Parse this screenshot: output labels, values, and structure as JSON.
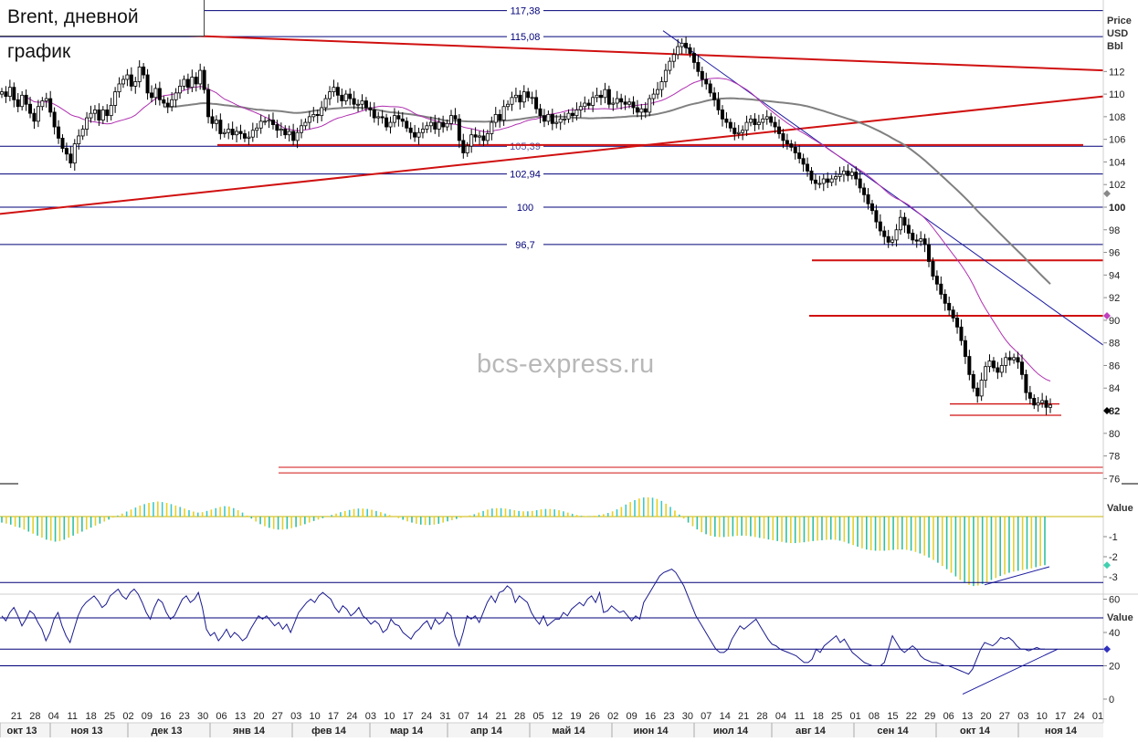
{
  "title": "Brent, дневной график",
  "watermark": "bcs-express.ru",
  "price_axis_header": [
    "Price",
    "USD",
    "Bbl"
  ],
  "osc_axis_header": "Value",
  "rsi_axis_header": "Value",
  "colors": {
    "candle": "#000000",
    "resistance": "#d01010",
    "fib": "#00007a",
    "ma_short": "#b030b0",
    "ma_long": "#808080",
    "trend_blue": "#1a1aa0",
    "hist_pos_a": "#e8d020",
    "hist_pos_b": "#40c8c8",
    "hist_neg_a": "#e0d030",
    "hist_neg_b": "#30c0a0",
    "rsi_line": "#1a1a90"
  },
  "chart_data": [
    {
      "type": "candlestick",
      "title": "Brent, дневной график",
      "ylabel": "Price USD Bbl",
      "ylim": [
        75,
        119
      ],
      "y_ticks": [
        76,
        78,
        80,
        82,
        84,
        86,
        88,
        90,
        92,
        94,
        96,
        98,
        100,
        102,
        104,
        106,
        108,
        110,
        112
      ],
      "y_tick_bold": [
        100,
        82
      ],
      "day_ticks": [
        "21",
        "28",
        "04",
        "11",
        "18",
        "25",
        "02",
        "09",
        "16",
        "23",
        "30",
        "06",
        "13",
        "20",
        "27",
        "03",
        "10",
        "17",
        "24",
        "03",
        "10",
        "17",
        "24",
        "31",
        "07",
        "14",
        "21",
        "28",
        "05",
        "12",
        "19",
        "26",
        "02",
        "09",
        "16",
        "23",
        "30",
        "07",
        "14",
        "21",
        "28",
        "04",
        "11",
        "18",
        "25",
        "01",
        "08",
        "15",
        "22",
        "29",
        "06",
        "13",
        "20",
        "27",
        "03",
        "10",
        "17",
        "24",
        "01"
      ],
      "month_ticks": [
        "окт 13",
        "ноя 13",
        "дек 13",
        "янв 14",
        "фев 14",
        "мар 14",
        "апр 14",
        "май 14",
        "июн 14",
        "июл 14",
        "авг 14",
        "сен 14",
        "окт 14",
        "ноя 14"
      ],
      "fib_levels": [
        {
          "label": "117,38",
          "value": 117.38
        },
        {
          "label": "115,08",
          "value": 115.08
        },
        {
          "label": "105,39",
          "value": 105.39
        },
        {
          "label": "102,94",
          "value": 102.94
        },
        {
          "label": "100",
          "value": 100
        },
        {
          "label": "96,7",
          "value": 96.7
        }
      ],
      "horizontal_levels": [
        95.3,
        90.4,
        82.6,
        81.6,
        77.0,
        76.5,
        105.5
      ],
      "closes": [
        110.2,
        109.8,
        110.6,
        109.5,
        108.9,
        109.9,
        109.1,
        108.3,
        107.6,
        108.9,
        109.4,
        109.6,
        108.4,
        107.1,
        106.1,
        105.2,
        104.7,
        103.9,
        105.6,
        106.3,
        106.9,
        107.9,
        108.3,
        108.6,
        107.7,
        108.6,
        108.1,
        109.0,
        110.2,
        110.9,
        111.3,
        111.7,
        110.7,
        111.1,
        112.4,
        111.7,
        110.1,
        109.7,
        110.5,
        109.5,
        109.2,
        108.9,
        109.5,
        110.1,
        110.7,
        111.3,
        110.6,
        111.5,
        110.9,
        112.1,
        110.4,
        108.0,
        107.4,
        107.7,
        106.5,
        106.6,
        106.9,
        106.4,
        106.7,
        106.5,
        106.1,
        106.2,
        106.8,
        107.0,
        107.6,
        107.6,
        107.7,
        107.3,
        106.8,
        106.9,
        106.4,
        106.7,
        105.9,
        106.6,
        107.2,
        107.5,
        108.0,
        108.2,
        108.1,
        108.8,
        109.6,
        110.2,
        110.6,
        109.9,
        109.4,
        110.0,
        109.6,
        109.1,
        109.1,
        109.4,
        108.8,
        108.6,
        107.9,
        108.0,
        107.9,
        107.1,
        107.5,
        108.1,
        107.8,
        107.6,
        107.0,
        106.6,
        106.2,
        106.6,
        106.9,
        107.2,
        107.5,
        106.9,
        107.5,
        107.1,
        107.4,
        108.1,
        107.8,
        105.9,
        104.8,
        105.4,
        106.4,
        106.2,
        106.3,
        105.9,
        106.5,
        107.5,
        108.2,
        107.7,
        108.9,
        109.1,
        109.7,
        109.9,
        109.3,
        110.2,
        109.7,
        109.7,
        108.7,
        108.1,
        107.6,
        108.2,
        107.4,
        107.5,
        107.8,
        107.8,
        108.3,
        108.1,
        108.6,
        108.9,
        109.2,
        109.0,
        109.7,
        109.9,
        109.7,
        110.4,
        109.1,
        109.2,
        109.6,
        109.3,
        109.1,
        109.3,
        108.8,
        108.4,
        108.7,
        108.4,
        109.6,
        110.0,
        110.4,
        111.1,
        112.1,
        112.9,
        113.5,
        114.2,
        114.5,
        114.1,
        113.6,
        112.8,
        112.0,
        111.3,
        110.9,
        110.1,
        109.5,
        108.6,
        107.8,
        107.5,
        107.0,
        106.5,
        106.6,
        106.8,
        107.5,
        107.8,
        107.3,
        107.5,
        107.8,
        108.0,
        107.5,
        107.1,
        106.5,
        105.9,
        105.6,
        105.3,
        104.8,
        104.3,
        103.8,
        103.2,
        102.4,
        102.1,
        102.1,
        102.5,
        102.2,
        102.5,
        102.7,
        102.9,
        103.2,
        102.8,
        103.1,
        102.5,
        101.7,
        101.1,
        100.3,
        99.7,
        98.7,
        97.9,
        97.4,
        96.9,
        97.1,
        98.0,
        99.1,
        98.4,
        97.7,
        97.1,
        97.0,
        97.2,
        96.7,
        95.2,
        93.9,
        93.2,
        92.3,
        91.5,
        90.9,
        90.2,
        89.4,
        88.2,
        86.8,
        85.2,
        84.0,
        83.3,
        84.7,
        85.9,
        86.4,
        85.8,
        85.4,
        86.0,
        86.7,
        86.5,
        86.7,
        86.3,
        85.2,
        83.6,
        83.1,
        82.5,
        82.7,
        82.9,
        82.3,
        82.5
      ]
    },
    {
      "type": "histogram",
      "name": "MACD",
      "ylim": [
        -3.7,
        1.0
      ],
      "y_ticks": [
        -1,
        -2,
        -3
      ],
      "values": [
        -0.3,
        -0.35,
        -0.4,
        -0.5,
        -0.55,
        -0.65,
        -0.75,
        -0.85,
        -0.95,
        -1.05,
        -1.15,
        -1.2,
        -1.25,
        -1.22,
        -1.15,
        -1.05,
        -0.95,
        -0.85,
        -0.75,
        -0.65,
        -0.55,
        -0.45,
        -0.35,
        -0.25,
        -0.15,
        -0.05,
        0.05,
        0.15,
        0.25,
        0.35,
        0.45,
        0.55,
        0.62,
        0.68,
        0.72,
        0.75,
        0.72,
        0.68,
        0.62,
        0.55,
        0.48,
        0.4,
        0.32,
        0.25,
        0.2,
        0.22,
        0.28,
        0.35,
        0.42,
        0.48,
        0.52,
        0.5,
        0.42,
        0.32,
        0.2,
        0.05,
        -0.1,
        -0.25,
        -0.38,
        -0.48,
        -0.56,
        -0.62,
        -0.65,
        -0.65,
        -0.62,
        -0.58,
        -0.52,
        -0.45,
        -0.38,
        -0.3,
        -0.22,
        -0.15,
        -0.08,
        0.0,
        0.08,
        0.15,
        0.22,
        0.28,
        0.33,
        0.38,
        0.4,
        0.4,
        0.38,
        0.34,
        0.28,
        0.22,
        0.15,
        0.08,
        0.0,
        -0.08,
        -0.16,
        -0.24,
        -0.3,
        -0.36,
        -0.4,
        -0.42,
        -0.42,
        -0.4,
        -0.36,
        -0.3,
        -0.24,
        -0.18,
        -0.12,
        -0.06,
        0.0,
        0.06,
        0.12,
        0.2,
        0.28,
        0.35,
        0.4,
        0.42,
        0.42,
        0.4,
        0.36,
        0.32,
        0.28,
        0.26,
        0.26,
        0.28,
        0.32,
        0.36,
        0.38,
        0.38,
        0.36,
        0.32,
        0.26,
        0.2,
        0.14,
        0.08,
        0.04,
        0.02,
        0.02,
        0.04,
        0.08,
        0.12,
        0.18,
        0.26,
        0.36,
        0.48,
        0.6,
        0.72,
        0.82,
        0.9,
        0.95,
        0.96,
        0.94,
        0.88,
        0.78,
        0.64,
        0.48,
        0.3,
        0.1,
        -0.1,
        -0.3,
        -0.48,
        -0.64,
        -0.78,
        -0.88,
        -0.96,
        -1.0,
        -1.02,
        -1.02,
        -1.0,
        -0.98,
        -0.96,
        -0.95,
        -0.96,
        -0.98,
        -1.02,
        -1.06,
        -1.1,
        -1.14,
        -1.18,
        -1.22,
        -1.26,
        -1.3,
        -1.32,
        -1.32,
        -1.3,
        -1.28,
        -1.25,
        -1.22,
        -1.2,
        -1.18,
        -1.16,
        -1.15,
        -1.16,
        -1.2,
        -1.26,
        -1.34,
        -1.42,
        -1.5,
        -1.58,
        -1.64,
        -1.68,
        -1.7,
        -1.7,
        -1.7,
        -1.68,
        -1.66,
        -1.64,
        -1.64,
        -1.66,
        -1.7,
        -1.76,
        -1.84,
        -1.94,
        -2.04,
        -2.16,
        -2.3,
        -2.46,
        -2.62,
        -2.8,
        -2.98,
        -3.16,
        -3.3,
        -3.4,
        -3.46,
        -3.44,
        -3.36,
        -3.26,
        -3.16,
        -3.06,
        -2.96,
        -2.88,
        -2.8,
        -2.74,
        -2.7,
        -2.66,
        -2.62,
        -2.58,
        -2.52,
        -2.46,
        -2.42
      ]
    },
    {
      "type": "line",
      "name": "RSI",
      "ylim": [
        -3,
        80
      ],
      "y_ticks": [
        60,
        40,
        20,
        0
      ],
      "levels": [
        70,
        30,
        20
      ],
      "values": [
        50,
        47,
        52,
        55,
        50,
        44,
        48,
        53,
        51,
        46,
        42,
        35,
        40,
        48,
        52,
        44,
        38,
        34,
        42,
        50,
        55,
        58,
        60,
        62,
        59,
        55,
        57,
        62,
        64,
        66,
        62,
        60,
        64,
        66,
        63,
        58,
        52,
        48,
        55,
        60,
        58,
        52,
        48,
        50,
        55,
        60,
        62,
        58,
        60,
        64,
        55,
        42,
        38,
        40,
        35,
        38,
        42,
        37,
        40,
        38,
        35,
        37,
        42,
        46,
        50,
        48,
        50,
        47,
        44,
        46,
        42,
        45,
        40,
        46,
        52,
        55,
        58,
        60,
        58,
        62,
        64,
        62,
        60,
        55,
        52,
        56,
        54,
        50,
        52,
        55,
        50,
        48,
        45,
        47,
        45,
        40,
        42,
        48,
        45,
        44,
        40,
        38,
        36,
        40,
        42,
        45,
        47,
        42,
        48,
        45,
        47,
        52,
        50,
        38,
        32,
        40,
        50,
        48,
        50,
        46,
        52,
        58,
        62,
        58,
        64,
        65,
        68,
        66,
        58,
        62,
        60,
        58,
        52,
        48,
        45,
        50,
        44,
        46,
        48,
        48,
        52,
        50,
        54,
        56,
        58,
        56,
        60,
        62,
        58,
        64,
        52,
        53,
        56,
        54,
        52,
        53,
        50,
        47,
        50,
        48,
        58,
        62,
        66,
        70,
        74,
        76,
        77,
        78,
        76,
        72,
        68,
        62,
        56,
        50,
        46,
        42,
        38,
        34,
        30,
        28,
        28,
        30,
        36,
        40,
        44,
        42,
        44,
        46,
        48,
        44,
        40,
        36,
        33,
        32,
        30,
        29,
        28,
        27,
        26,
        24,
        22,
        22,
        24,
        30,
        28,
        32,
        34,
        36,
        38,
        34,
        36,
        32,
        28,
        26,
        24,
        22,
        21,
        20,
        20,
        20,
        22,
        30,
        38,
        34,
        30,
        28,
        30,
        32,
        30,
        26,
        24,
        23,
        22,
        22,
        21,
        20,
        20,
        19,
        18,
        17,
        16,
        15,
        18,
        24,
        30,
        34,
        33,
        32,
        34,
        37,
        36,
        37,
        35,
        32,
        30,
        30,
        29,
        30,
        31,
        30,
        30
      ]
    }
  ]
}
